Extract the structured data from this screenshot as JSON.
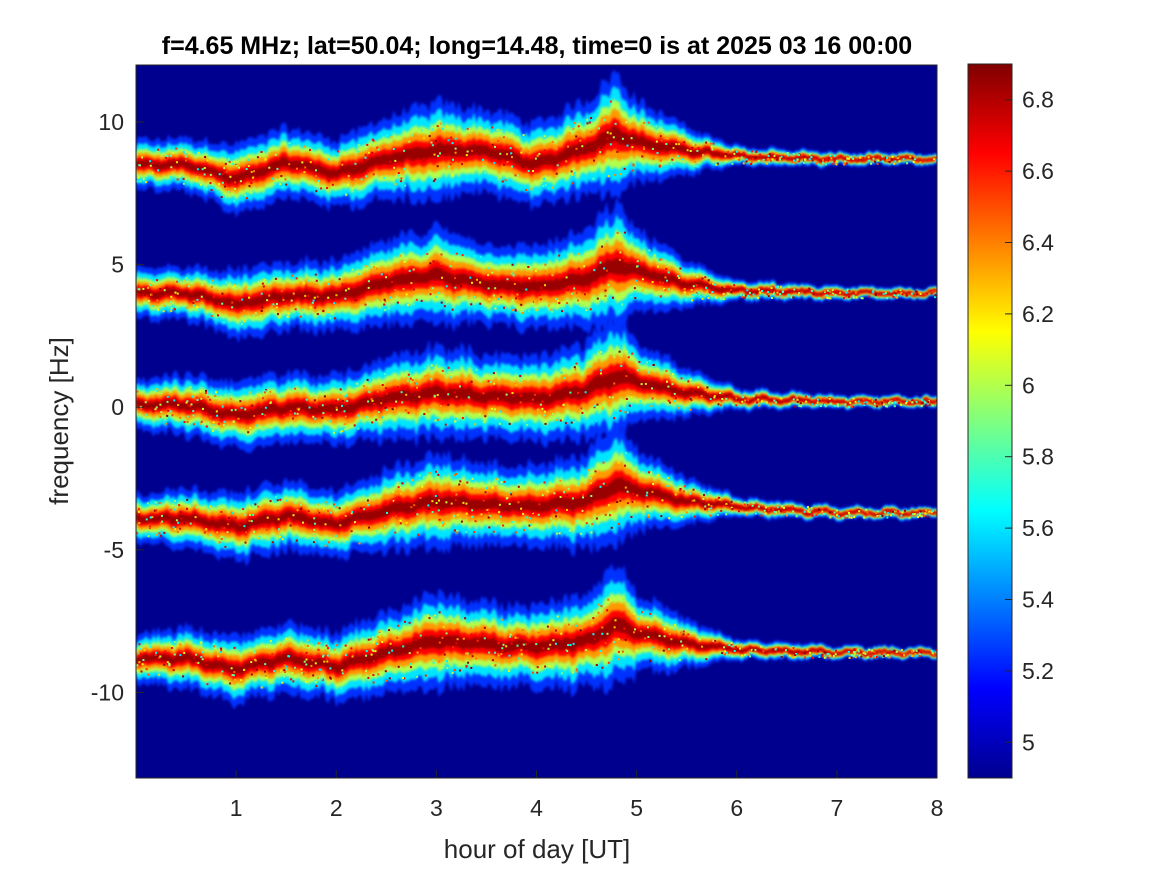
{
  "chart_data": {
    "type": "heatmap",
    "title": "f=4.65 MHz;  lat=50.04; long=14.48, time=0 is at 2025 03 16 00:00",
    "xlabel": "hour of day [UT]",
    "ylabel": "frequency [Hz]",
    "xlim": [
      0,
      8
    ],
    "ylim": [
      -13,
      12
    ],
    "x_ticks": [
      1,
      2,
      3,
      4,
      5,
      6,
      7,
      8
    ],
    "x_tick_labels": [
      "1",
      "2",
      "3",
      "4",
      "5",
      "6",
      "7",
      "8"
    ],
    "y_ticks": [
      10,
      5,
      0,
      -5,
      -10
    ],
    "y_tick_labels": [
      "10",
      "5",
      "0",
      "-5",
      "-10"
    ],
    "colorbar": {
      "colormap": "jet",
      "limits": [
        4.9,
        6.9
      ],
      "ticks": [
        6.8,
        6.6,
        6.4,
        6.2,
        6,
        5.8,
        5.6,
        5.4,
        5.2,
        5
      ],
      "tick_labels": [
        "6.8",
        "6.6",
        "6.4",
        "6.2",
        "6",
        "5.8",
        "5.6",
        "5.4",
        "5.2",
        "5"
      ]
    },
    "background_value": 4.9,
    "background_color": "#00008f",
    "grid": false,
    "series": [
      {
        "offset": 8.5,
        "x": [
          0,
          0.5,
          1,
          1.5,
          2,
          2.5,
          3,
          3.5,
          4,
          4.5,
          4.8,
          5,
          5.5,
          6,
          7,
          8
        ],
        "y": [
          8.5,
          8.5,
          8.0,
          8.6,
          8.2,
          8.7,
          9.0,
          9.0,
          8.5,
          9.1,
          9.6,
          9.3,
          9.0,
          8.8,
          8.7,
          8.7
        ],
        "spread": [
          0.35,
          0.4,
          0.5,
          0.5,
          0.5,
          0.6,
          0.7,
          0.6,
          0.6,
          0.7,
          0.9,
          0.6,
          0.35,
          0.15,
          0.1,
          0.08
        ]
      },
      {
        "offset": 4.0,
        "x": [
          0,
          0.5,
          1,
          1.5,
          2,
          2.5,
          3,
          3.5,
          4,
          4.5,
          4.8,
          5,
          5.5,
          6,
          7,
          8
        ],
        "y": [
          4.0,
          4.0,
          3.6,
          3.9,
          3.9,
          4.4,
          4.6,
          4.3,
          4.2,
          4.5,
          5.0,
          4.8,
          4.3,
          4.1,
          4.0,
          4.0
        ],
        "spread": [
          0.35,
          0.4,
          0.5,
          0.5,
          0.5,
          0.6,
          0.7,
          0.6,
          0.6,
          0.7,
          0.9,
          0.6,
          0.35,
          0.15,
          0.1,
          0.08
        ]
      },
      {
        "offset": 0.0,
        "x": [
          0,
          0.5,
          1,
          1.5,
          2,
          2.5,
          3,
          3.5,
          4,
          4.5,
          4.8,
          5,
          5.5,
          6,
          7,
          8
        ],
        "y": [
          0.1,
          0.1,
          -0.3,
          0.0,
          -0.1,
          0.3,
          0.5,
          0.4,
          0.3,
          0.6,
          1.1,
          0.9,
          0.5,
          0.3,
          0.2,
          0.2
        ],
        "spread": [
          0.35,
          0.45,
          0.5,
          0.5,
          0.5,
          0.6,
          0.7,
          0.6,
          0.6,
          0.7,
          0.9,
          0.6,
          0.35,
          0.15,
          0.1,
          0.08
        ]
      },
      {
        "offset": -4.0,
        "x": [
          0,
          0.5,
          1,
          1.5,
          2,
          2.5,
          3,
          3.5,
          4,
          4.5,
          4.8,
          5,
          5.5,
          6,
          7,
          8
        ],
        "y": [
          -3.9,
          -3.9,
          -4.2,
          -3.8,
          -4.1,
          -3.6,
          -3.3,
          -3.4,
          -3.5,
          -3.3,
          -2.7,
          -2.9,
          -3.3,
          -3.5,
          -3.7,
          -3.7
        ],
        "spread": [
          0.35,
          0.45,
          0.5,
          0.5,
          0.5,
          0.6,
          0.7,
          0.6,
          0.6,
          0.7,
          0.9,
          0.6,
          0.35,
          0.15,
          0.1,
          0.08
        ]
      },
      {
        "offset": -8.5,
        "x": [
          0,
          0.5,
          1,
          1.5,
          2,
          2.5,
          3,
          3.5,
          4,
          4.5,
          4.8,
          5,
          5.5,
          6,
          7,
          8
        ],
        "y": [
          -8.8,
          -8.8,
          -9.2,
          -8.8,
          -9.1,
          -8.6,
          -8.2,
          -8.3,
          -8.4,
          -8.2,
          -7.6,
          -7.9,
          -8.3,
          -8.5,
          -8.6,
          -8.6
        ],
        "spread": [
          0.35,
          0.45,
          0.5,
          0.5,
          0.5,
          0.6,
          0.7,
          0.6,
          0.6,
          0.7,
          0.9,
          0.6,
          0.35,
          0.15,
          0.1,
          0.08
        ]
      }
    ]
  }
}
